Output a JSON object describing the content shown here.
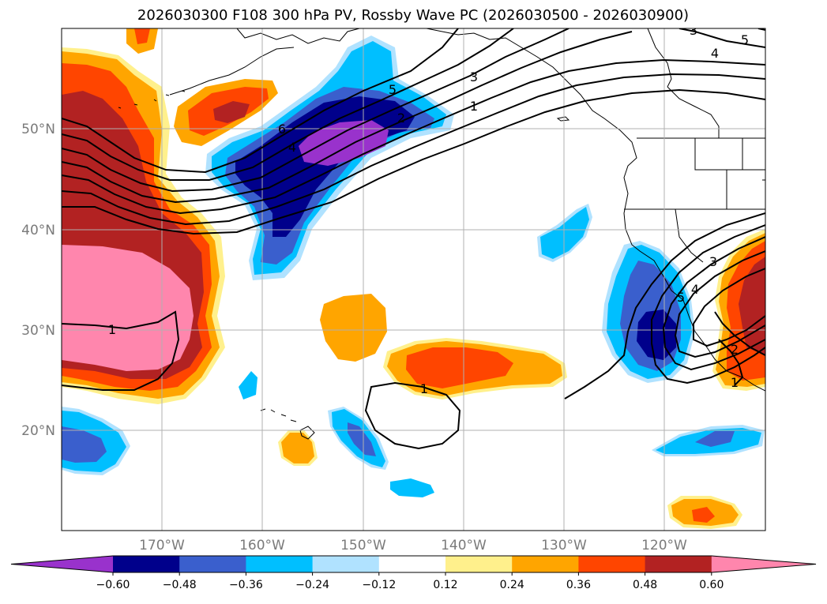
{
  "title": "2026030300 F108 300 hPa PV, Rossby Wave PC (2026030500 - 2026030900)",
  "lat_labels": [
    "50°N",
    "40°N",
    "30°N",
    "20°N"
  ],
  "lon_labels": [
    "170°W",
    "160°W",
    "150°W",
    "140°W",
    "130°W",
    "120°W"
  ],
  "colorbar": {
    "ticks": [
      "−0.60",
      "−0.48",
      "−0.36",
      "−0.24",
      "−0.12",
      "0.12",
      "0.24",
      "0.36",
      "0.48",
      "0.60"
    ],
    "colors": [
      "#9932cc",
      "#00008b",
      "#3a5fcd",
      "#00bfff",
      "#b0e2ff",
      "#ffffff",
      "#fff08c",
      "#ffa500",
      "#ff4500",
      "#b22222",
      "#ff86ad"
    ]
  },
  "contour_labels": [
    "1",
    "2",
    "3",
    "4",
    "5",
    "6",
    "1",
    "1",
    "1",
    "2",
    "3",
    "4",
    "5",
    "3",
    "4",
    "5",
    "1"
  ]
}
